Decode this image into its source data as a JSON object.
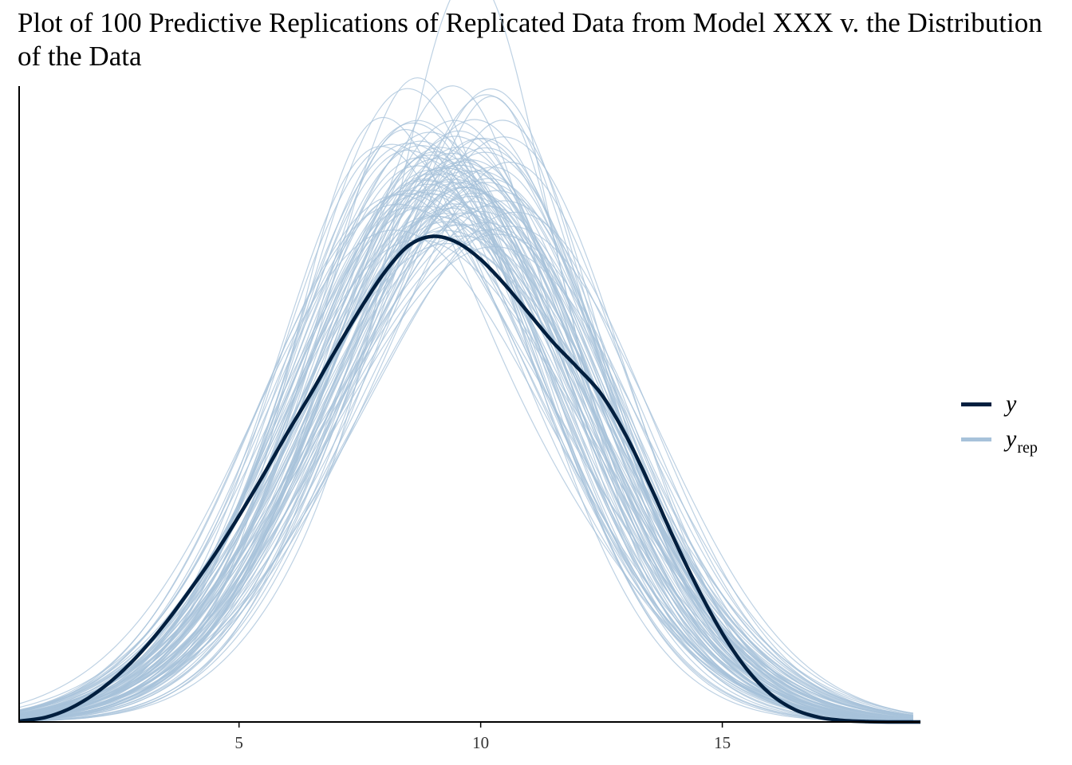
{
  "title": "Plot of 100 Predictive Replications of Replicated Data from Model XXX v. the Distribution of the Data",
  "colors": {
    "y": "#011f3f",
    "yrep": "#a7c2da",
    "axis": "#000000"
  },
  "legend": {
    "placement": "right",
    "items": [
      {
        "label": "y",
        "sub": "",
        "color": "#011f3f"
      },
      {
        "label": "y",
        "sub": "rep",
        "color": "#a7c2da"
      }
    ]
  },
  "chart_data": {
    "type": "line",
    "title": "Plot of 100 Predictive Replications of Replicated Data from Model XXX v. the Distribution of the Data",
    "xlabel": "",
    "ylabel": "",
    "xlim": [
      0.45,
      19.1
    ],
    "ylim": [
      0,
      0.165
    ],
    "x_ticks": [
      5,
      10,
      15
    ],
    "grid": false,
    "yrep_count": 100,
    "series": [
      {
        "name": "y",
        "x": [
          0.45,
          1,
          1.5,
          2,
          2.5,
          3,
          3.5,
          4,
          4.5,
          5,
          5.5,
          6,
          6.5,
          7,
          7.5,
          8,
          8.5,
          9,
          9.5,
          10,
          10.5,
          11,
          11.5,
          12,
          12.5,
          13,
          13.5,
          14,
          14.5,
          15,
          15.5,
          16,
          16.5,
          17,
          17.5,
          18,
          18.5,
          19.1
        ],
        "values": [
          0.0002,
          0.0012,
          0.0035,
          0.0072,
          0.0122,
          0.0185,
          0.026,
          0.0345,
          0.0435,
          0.0535,
          0.064,
          0.075,
          0.0855,
          0.0965,
          0.107,
          0.1165,
          0.1235,
          0.126,
          0.1245,
          0.12,
          0.1135,
          0.106,
          0.0985,
          0.092,
          0.085,
          0.0745,
          0.0615,
          0.0475,
          0.0345,
          0.023,
          0.0138,
          0.0072,
          0.0032,
          0.0012,
          0.0004,
          0.0001,
          0.0,
          0.0
        ]
      }
    ]
  }
}
